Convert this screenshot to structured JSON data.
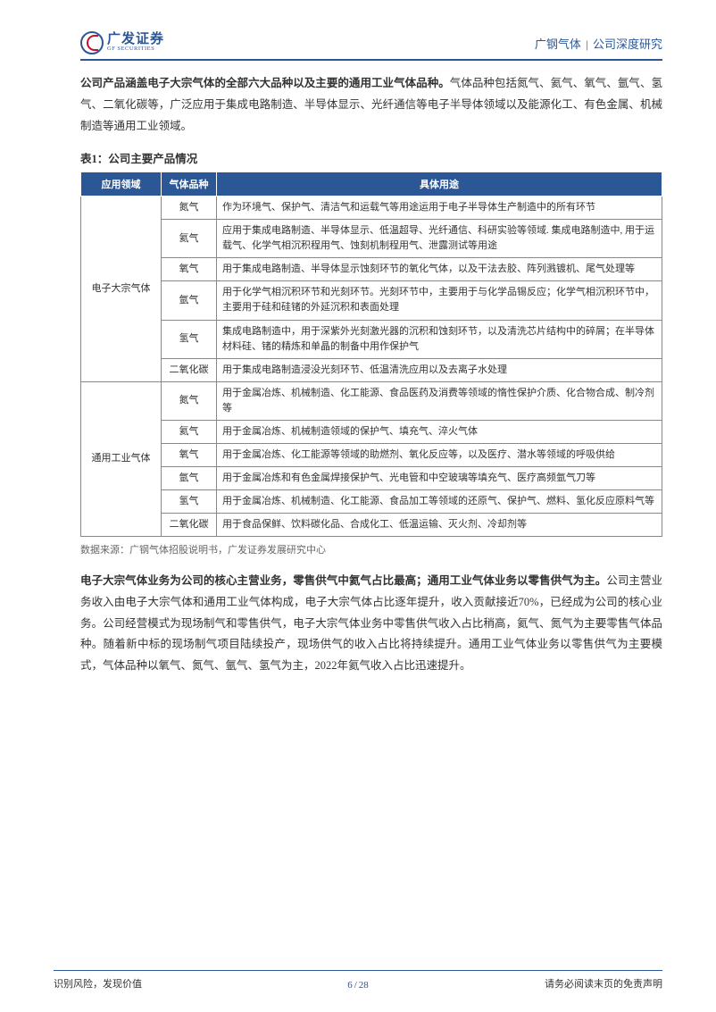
{
  "header": {
    "logo_cn": "广发证券",
    "logo_en": "GF SECURITIES",
    "company": "广钢气体",
    "doc_type": "公司深度研究"
  },
  "intro": {
    "bold": "公司产品涵盖电子大宗气体的全部六大品种以及主要的通用工业气体品种。",
    "rest": "气体品种包括氮气、氦气、氧气、氩气、氢气、二氧化碳等，广泛应用于集成电路制造、半导体显示、光纤通信等电子半导体领域以及能源化工、有色金属、机械制造等通用工业领域。"
  },
  "table": {
    "caption": "表1：公司主要产品情况",
    "headers": [
      "应用领域",
      "气体品种",
      "具体用途"
    ],
    "groups": [
      {
        "domain": "电子大宗气体",
        "rows": [
          {
            "gas": "氮气",
            "use": "作为环境气、保护气、清洁气和运载气等用途运用于电子半导体生产制造中的所有环节"
          },
          {
            "gas": "氦气",
            "use": "应用于集成电路制造、半导体显示、低温超导、光纤通信、科研实验等领域. 集成电路制造中, 用于运载气、化学气相沉积程用气、蚀刻机制程用气、泄露测试等用途"
          },
          {
            "gas": "氧气",
            "use": "用于集成电路制造、半导体显示蚀刻环节的氧化气体，以及干法去胶、阵列溅镀机、尾气处理等"
          },
          {
            "gas": "氩气",
            "use": "用于化学气相沉积环节和光刻环节。光刻环节中，主要用于与化学品锡反应；化学气相沉积环节中，主要用于硅和硅锗的外延沉积和表面处理"
          },
          {
            "gas": "氢气",
            "use": "集成电路制造中，用于深紫外光刻激光器的沉积和蚀刻环节，以及清洗芯片结构中的碎屑；在半导体材料硅、锗的精炼和单晶的制备中用作保护气"
          },
          {
            "gas": "二氧化碳",
            "use": "用于集成电路制造浸没光刻环节、低温清洗应用以及去离子水处理"
          }
        ]
      },
      {
        "domain": "通用工业气体",
        "rows": [
          {
            "gas": "氮气",
            "use": "用于金属冶炼、机械制造、化工能源、食品医药及消费等领域的惰性保护介质、化合物合成、制冷剂等"
          },
          {
            "gas": "氦气",
            "use": "用于金属冶炼、机械制造领域的保护气、填充气、淬火气体"
          },
          {
            "gas": "氧气",
            "use": "用于金属冶炼、化工能源等领域的助燃剂、氧化反应等，以及医疗、潜水等领域的呼吸供给"
          },
          {
            "gas": "氩气",
            "use": "用于金属冶炼和有色金属焊接保护气、光电管和中空玻璃等填充气、医疗高频氩气刀等"
          },
          {
            "gas": "氢气",
            "use": "用于金属冶炼、机械制造、化工能源、食品加工等领域的还原气、保护气、燃料、氢化反应原料气等"
          },
          {
            "gas": "二氧化碳",
            "use": "用于食品保鲜、饮料碳化品、合成化工、低温运输、灭火剂、冷却剂等"
          }
        ]
      }
    ],
    "source": "数据来源：广钢气体招股说明书，广发证券发展研究中心"
  },
  "para2": {
    "bold": "电子大宗气体业务为公司的核心主营业务，零售供气中氦气占比最高；通用工业气体业务以零售供气为主。",
    "rest": "公司主营业务收入由电子大宗气体和通用工业气体构成，电子大宗气体占比逐年提升，收入贡献接近70%，已经成为公司的核心业务。公司经营模式为现场制气和零售供气，电子大宗气体业务中零售供气收入占比稍高，氦气、氮气为主要零售气体品种。随着新中标的现场制气项目陆续投产，现场供气的收入占比将持续提升。通用工业气体业务以零售供气为主要模式，气体品种以氧气、氮气、氩气、氢气为主，2022年氦气收入占比迅速提升。"
  },
  "footer": {
    "left": "识别风险，发现价值",
    "right": "请务必阅读末页的免责声明",
    "page_current": "6",
    "page_total": "28"
  }
}
